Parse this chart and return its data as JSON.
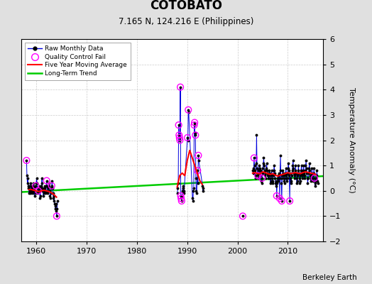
{
  "title": "COTOBATO",
  "subtitle": "7.165 N, 124.216 E (Philippines)",
  "ylabel": "Temperature Anomaly (°C)",
  "credit": "Berkeley Earth",
  "xlim": [
    1957,
    2017
  ],
  "ylim": [
    -2,
    6
  ],
  "yticks": [
    -2,
    -1,
    0,
    1,
    2,
    3,
    4,
    5,
    6
  ],
  "xticks": [
    1960,
    1970,
    1980,
    1990,
    2000,
    2010
  ],
  "bg_color": "#e0e0e0",
  "plot_bg_color": "#ffffff",
  "raw_color": "#0000dd",
  "qc_color": "#ff00ff",
  "moving_avg_color": "#ff0000",
  "trend_color": "#00cc00",
  "raw_monthly": [
    [
      1958.04,
      1.2
    ],
    [
      1958.12,
      0.6
    ],
    [
      1958.21,
      0.3
    ],
    [
      1958.29,
      0.5
    ],
    [
      1958.38,
      0.1
    ],
    [
      1958.46,
      0.2
    ],
    [
      1958.54,
      -0.1
    ],
    [
      1958.63,
      0.0
    ],
    [
      1958.71,
      0.2
    ],
    [
      1958.79,
      0.3
    ],
    [
      1958.88,
      -0.1
    ],
    [
      1958.96,
      0.0
    ],
    [
      1959.04,
      0.2
    ],
    [
      1959.12,
      0.1
    ],
    [
      1959.21,
      -0.1
    ],
    [
      1959.29,
      0.0
    ],
    [
      1959.38,
      0.2
    ],
    [
      1959.46,
      0.3
    ],
    [
      1959.54,
      0.0
    ],
    [
      1959.63,
      -0.2
    ],
    [
      1959.71,
      0.1
    ],
    [
      1959.79,
      -0.1
    ],
    [
      1959.88,
      0.2
    ],
    [
      1959.96,
      0.3
    ],
    [
      1960.04,
      0.5
    ],
    [
      1960.12,
      0.3
    ],
    [
      1960.21,
      0.1
    ],
    [
      1960.29,
      -0.1
    ],
    [
      1960.38,
      0.0
    ],
    [
      1960.46,
      0.2
    ],
    [
      1960.54,
      0.1
    ],
    [
      1960.63,
      0.0
    ],
    [
      1960.71,
      -0.3
    ],
    [
      1960.79,
      -0.2
    ],
    [
      1960.88,
      0.1
    ],
    [
      1960.96,
      0.2
    ],
    [
      1961.04,
      0.3
    ],
    [
      1961.12,
      0.5
    ],
    [
      1961.21,
      0.1
    ],
    [
      1961.29,
      0.0
    ],
    [
      1961.38,
      -0.2
    ],
    [
      1961.46,
      -0.1
    ],
    [
      1961.54,
      0.0
    ],
    [
      1961.63,
      0.2
    ],
    [
      1961.71,
      0.1
    ],
    [
      1961.79,
      -0.1
    ],
    [
      1961.88,
      0.0
    ],
    [
      1961.96,
      0.2
    ],
    [
      1962.04,
      0.4
    ],
    [
      1962.12,
      0.2
    ],
    [
      1962.21,
      0.0
    ],
    [
      1962.29,
      -0.1
    ],
    [
      1962.38,
      0.1
    ],
    [
      1962.46,
      0.3
    ],
    [
      1962.54,
      0.2
    ],
    [
      1962.63,
      0.0
    ],
    [
      1962.71,
      -0.2
    ],
    [
      1962.79,
      -0.3
    ],
    [
      1962.88,
      -0.1
    ],
    [
      1962.96,
      0.1
    ],
    [
      1963.04,
      0.2
    ],
    [
      1963.12,
      0.4
    ],
    [
      1963.21,
      0.1
    ],
    [
      1963.29,
      -0.1
    ],
    [
      1963.38,
      -0.3
    ],
    [
      1963.46,
      -0.4
    ],
    [
      1963.54,
      -0.2
    ],
    [
      1963.63,
      -0.5
    ],
    [
      1963.71,
      -0.6
    ],
    [
      1963.79,
      -0.7
    ],
    [
      1963.88,
      -0.5
    ],
    [
      1963.96,
      -0.8
    ],
    [
      1964.04,
      -1.0
    ],
    [
      1964.12,
      -0.7
    ],
    [
      1964.21,
      -0.4
    ],
    [
      1988.04,
      -0.1
    ],
    [
      1988.12,
      0.1
    ],
    [
      1988.21,
      0.3
    ],
    [
      1988.29,
      2.6
    ],
    [
      1988.38,
      2.2
    ],
    [
      1988.46,
      2.1
    ],
    [
      1988.54,
      2.0
    ],
    [
      1988.63,
      4.1
    ],
    [
      1988.71,
      -0.2
    ],
    [
      1988.79,
      -0.3
    ],
    [
      1988.88,
      -0.4
    ],
    [
      1988.96,
      -0.2
    ],
    [
      1989.04,
      0.0
    ],
    [
      1989.12,
      0.2
    ],
    [
      1989.21,
      0.1
    ],
    [
      1989.29,
      -0.1
    ],
    [
      1989.38,
      0.0
    ],
    [
      1990.04,
      2.1
    ],
    [
      1990.12,
      2.0
    ],
    [
      1990.21,
      3.2
    ],
    [
      1990.29,
      3.1
    ],
    [
      1991.04,
      -0.3
    ],
    [
      1991.12,
      -0.4
    ],
    [
      1991.21,
      0.0
    ],
    [
      1991.29,
      0.1
    ],
    [
      1991.38,
      2.6
    ],
    [
      1991.46,
      2.7
    ],
    [
      1991.54,
      2.3
    ],
    [
      1991.63,
      2.2
    ],
    [
      1991.71,
      0.5
    ],
    [
      1991.79,
      0.0
    ],
    [
      1991.88,
      -0.1
    ],
    [
      1992.04,
      0.8
    ],
    [
      1992.12,
      0.3
    ],
    [
      1992.21,
      1.4
    ],
    [
      1992.29,
      1.2
    ],
    [
      1993.04,
      0.2
    ],
    [
      1993.12,
      0.0
    ],
    [
      1993.21,
      0.1
    ],
    [
      2001.04,
      -1.0
    ],
    [
      2003.04,
      0.8
    ],
    [
      2003.12,
      0.7
    ],
    [
      2003.21,
      0.9
    ],
    [
      2003.29,
      1.3
    ],
    [
      2003.38,
      1.0
    ],
    [
      2003.46,
      0.8
    ],
    [
      2003.54,
      0.6
    ],
    [
      2003.63,
      0.5
    ],
    [
      2003.71,
      1.1
    ],
    [
      2003.79,
      2.2
    ],
    [
      2003.88,
      0.9
    ],
    [
      2003.96,
      0.7
    ],
    [
      2004.04,
      0.6
    ],
    [
      2004.12,
      0.5
    ],
    [
      2004.21,
      0.8
    ],
    [
      2004.29,
      1.0
    ],
    [
      2004.38,
      0.7
    ],
    [
      2004.46,
      0.9
    ],
    [
      2004.54,
      0.8
    ],
    [
      2004.63,
      0.6
    ],
    [
      2004.71,
      0.4
    ],
    [
      2004.79,
      0.3
    ],
    [
      2004.88,
      0.5
    ],
    [
      2004.96,
      0.7
    ],
    [
      2005.04,
      0.9
    ],
    [
      2005.12,
      1.1
    ],
    [
      2005.21,
      1.3
    ],
    [
      2005.29,
      1.0
    ],
    [
      2005.38,
      0.8
    ],
    [
      2005.46,
      0.6
    ],
    [
      2005.54,
      0.5
    ],
    [
      2005.63,
      0.7
    ],
    [
      2005.71,
      0.9
    ],
    [
      2005.79,
      1.1
    ],
    [
      2005.88,
      0.8
    ],
    [
      2005.96,
      0.6
    ],
    [
      2006.04,
      0.7
    ],
    [
      2006.12,
      0.5
    ],
    [
      2006.21,
      0.6
    ],
    [
      2006.29,
      0.8
    ],
    [
      2006.38,
      0.7
    ],
    [
      2006.46,
      0.5
    ],
    [
      2006.54,
      0.3
    ],
    [
      2006.63,
      0.4
    ],
    [
      2006.71,
      0.6
    ],
    [
      2006.79,
      0.8
    ],
    [
      2006.88,
      0.5
    ],
    [
      2006.96,
      0.3
    ],
    [
      2007.04,
      0.4
    ],
    [
      2007.12,
      0.6
    ],
    [
      2007.21,
      0.8
    ],
    [
      2007.29,
      1.0
    ],
    [
      2007.38,
      0.7
    ],
    [
      2007.46,
      0.5
    ],
    [
      2007.54,
      0.3
    ],
    [
      2007.63,
      0.2
    ],
    [
      2007.71,
      0.4
    ],
    [
      2007.79,
      -0.2
    ],
    [
      2007.88,
      0.3
    ],
    [
      2007.96,
      0.5
    ],
    [
      2008.04,
      0.6
    ],
    [
      2008.12,
      0.4
    ],
    [
      2008.21,
      0.5
    ],
    [
      2008.29,
      0.7
    ],
    [
      2008.38,
      -0.3
    ],
    [
      2008.46,
      0.8
    ],
    [
      2008.54,
      1.4
    ],
    [
      2008.63,
      0.5
    ],
    [
      2008.71,
      0.3
    ],
    [
      2008.79,
      -0.4
    ],
    [
      2008.88,
      0.6
    ],
    [
      2008.96,
      0.8
    ],
    [
      2009.04,
      0.7
    ],
    [
      2009.12,
      0.5
    ],
    [
      2009.21,
      0.6
    ],
    [
      2009.29,
      0.4
    ],
    [
      2009.38,
      0.3
    ],
    [
      2009.46,
      0.5
    ],
    [
      2009.54,
      0.7
    ],
    [
      2009.63,
      0.9
    ],
    [
      2009.71,
      0.6
    ],
    [
      2009.79,
      0.4
    ],
    [
      2009.88,
      0.5
    ],
    [
      2009.96,
      0.7
    ],
    [
      2010.04,
      0.9
    ],
    [
      2010.12,
      1.1
    ],
    [
      2010.21,
      0.8
    ],
    [
      2010.29,
      0.6
    ],
    [
      2010.38,
      -0.4
    ],
    [
      2010.46,
      0.7
    ],
    [
      2010.54,
      0.5
    ],
    [
      2010.63,
      0.3
    ],
    [
      2010.71,
      0.4
    ],
    [
      2010.79,
      0.6
    ],
    [
      2010.88,
      0.8
    ],
    [
      2010.96,
      1.0
    ],
    [
      2011.04,
      1.2
    ],
    [
      2011.12,
      0.9
    ],
    [
      2011.21,
      0.7
    ],
    [
      2011.29,
      0.5
    ],
    [
      2011.38,
      0.6
    ],
    [
      2011.46,
      0.8
    ],
    [
      2011.54,
      1.0
    ],
    [
      2011.63,
      0.7
    ],
    [
      2011.71,
      0.5
    ],
    [
      2011.79,
      0.3
    ],
    [
      2011.88,
      0.4
    ],
    [
      2011.96,
      0.6
    ],
    [
      2012.04,
      0.8
    ],
    [
      2012.12,
      1.0
    ],
    [
      2012.21,
      0.7
    ],
    [
      2012.29,
      0.5
    ],
    [
      2012.38,
      0.3
    ],
    [
      2012.46,
      0.4
    ],
    [
      2012.54,
      0.6
    ],
    [
      2012.63,
      0.8
    ],
    [
      2012.71,
      1.0
    ],
    [
      2012.79,
      0.7
    ],
    [
      2012.88,
      0.5
    ],
    [
      2012.96,
      0.6
    ],
    [
      2013.04,
      0.8
    ],
    [
      2013.12,
      1.0
    ],
    [
      2013.21,
      0.7
    ],
    [
      2013.29,
      0.5
    ],
    [
      2013.38,
      0.6
    ],
    [
      2013.46,
      0.8
    ],
    [
      2013.54,
      1.0
    ],
    [
      2013.63,
      1.2
    ],
    [
      2013.71,
      0.9
    ],
    [
      2013.79,
      0.7
    ],
    [
      2013.88,
      0.5
    ],
    [
      2013.96,
      0.3
    ],
    [
      2014.04,
      0.5
    ],
    [
      2014.12,
      0.7
    ],
    [
      2014.21,
      0.9
    ],
    [
      2014.29,
      1.1
    ],
    [
      2014.38,
      0.8
    ],
    [
      2014.46,
      0.6
    ],
    [
      2014.54,
      0.4
    ],
    [
      2014.63,
      0.5
    ],
    [
      2014.71,
      0.7
    ],
    [
      2014.79,
      0.9
    ],
    [
      2014.88,
      0.6
    ],
    [
      2014.96,
      0.4
    ],
    [
      2015.04,
      0.5
    ],
    [
      2015.12,
      0.7
    ],
    [
      2015.21,
      0.9
    ],
    [
      2015.29,
      0.5
    ],
    [
      2015.38,
      0.3
    ],
    [
      2015.46,
      0.2
    ],
    [
      2015.54,
      0.4
    ],
    [
      2015.63,
      0.5
    ],
    [
      2015.71,
      0.6
    ],
    [
      2015.79,
      0.8
    ],
    [
      2015.88,
      0.4
    ],
    [
      2015.96,
      0.3
    ]
  ],
  "qc_fail": [
    [
      1958.04,
      1.2
    ],
    [
      1959.88,
      0.2
    ],
    [
      1960.38,
      0.0
    ],
    [
      1962.04,
      0.4
    ],
    [
      1963.04,
      0.2
    ],
    [
      1964.04,
      -1.0
    ],
    [
      1988.29,
      2.6
    ],
    [
      1988.38,
      2.2
    ],
    [
      1988.46,
      2.1
    ],
    [
      1988.54,
      2.0
    ],
    [
      1988.63,
      4.1
    ],
    [
      1988.71,
      -0.2
    ],
    [
      1988.79,
      -0.3
    ],
    [
      1988.88,
      -0.4
    ],
    [
      1990.04,
      2.1
    ],
    [
      1990.21,
      3.2
    ],
    [
      1991.38,
      2.6
    ],
    [
      1991.46,
      2.7
    ],
    [
      1991.63,
      2.2
    ],
    [
      1992.04,
      0.8
    ],
    [
      1992.21,
      1.4
    ],
    [
      2001.04,
      -1.0
    ],
    [
      2003.29,
      1.3
    ],
    [
      2004.04,
      0.6
    ],
    [
      2004.88,
      0.5
    ],
    [
      2007.79,
      -0.2
    ],
    [
      2008.38,
      -0.3
    ],
    [
      2008.79,
      -0.4
    ],
    [
      2010.38,
      -0.4
    ],
    [
      2015.29,
      0.5
    ]
  ],
  "moving_avg": [
    [
      1958.5,
      0.05
    ],
    [
      1959.0,
      0.05
    ],
    [
      1959.5,
      0.02
    ],
    [
      1960.0,
      0.0
    ],
    [
      1960.5,
      -0.03
    ],
    [
      1961.0,
      0.0
    ],
    [
      1961.5,
      0.02
    ],
    [
      1962.0,
      0.0
    ],
    [
      1962.5,
      -0.03
    ],
    [
      1963.0,
      -0.08
    ],
    [
      1963.5,
      -0.15
    ],
    [
      1964.0,
      -0.25
    ],
    [
      1988.0,
      0.15
    ],
    [
      1988.5,
      0.6
    ],
    [
      1989.0,
      0.7
    ],
    [
      1989.5,
      0.6
    ],
    [
      1990.0,
      1.2
    ],
    [
      1990.5,
      1.6
    ],
    [
      1991.0,
      1.3
    ],
    [
      1991.5,
      1.0
    ],
    [
      1992.0,
      0.7
    ],
    [
      1992.5,
      0.4
    ],
    [
      1993.0,
      0.25
    ],
    [
      2003.0,
      0.7
    ],
    [
      2003.5,
      0.72
    ],
    [
      2004.0,
      0.68
    ],
    [
      2004.5,
      0.68
    ],
    [
      2005.0,
      0.75
    ],
    [
      2005.5,
      0.72
    ],
    [
      2006.0,
      0.68
    ],
    [
      2006.5,
      0.65
    ],
    [
      2007.0,
      0.68
    ],
    [
      2007.5,
      0.62
    ],
    [
      2008.0,
      0.58
    ],
    [
      2008.5,
      0.62
    ],
    [
      2009.0,
      0.65
    ],
    [
      2009.5,
      0.68
    ],
    [
      2010.0,
      0.72
    ],
    [
      2010.5,
      0.68
    ],
    [
      2011.0,
      0.7
    ],
    [
      2011.5,
      0.72
    ],
    [
      2012.0,
      0.7
    ],
    [
      2012.5,
      0.68
    ],
    [
      2013.0,
      0.72
    ],
    [
      2013.5,
      0.75
    ],
    [
      2014.0,
      0.73
    ],
    [
      2014.5,
      0.7
    ],
    [
      2015.0,
      0.68
    ],
    [
      2015.5,
      0.65
    ]
  ],
  "trend_x": [
    1957,
    2017
  ],
  "trend_y": [
    -0.05,
    0.58
  ]
}
